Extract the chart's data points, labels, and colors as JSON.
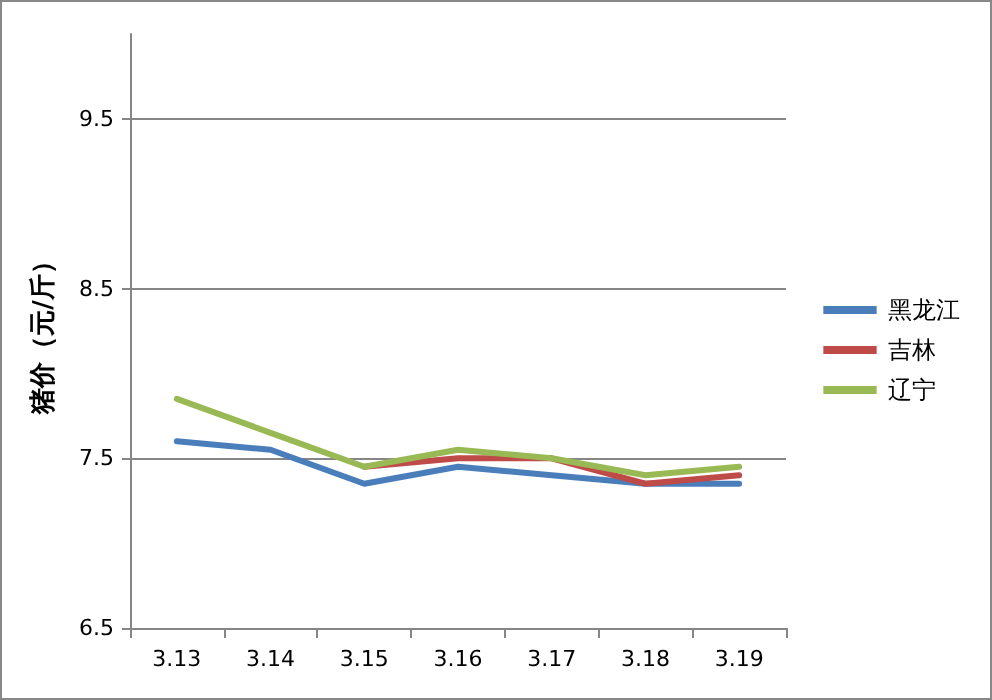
{
  "chart_data": {
    "type": "line",
    "ylabel": "猪价（元/斤）",
    "categories": [
      "3.13",
      "3.14",
      "3.15",
      "3.16",
      "3.17",
      "3.18",
      "3.19"
    ],
    "series": [
      {
        "name": "黑龙江",
        "color": "#4a7ebb",
        "values": [
          7.6,
          7.55,
          7.35,
          7.45,
          7.4,
          7.35,
          7.35
        ]
      },
      {
        "name": "吉林",
        "color": "#be4b48",
        "values": [
          null,
          null,
          7.45,
          7.5,
          7.5,
          7.35,
          7.4
        ]
      },
      {
        "name": "辽宁",
        "color": "#98b954",
        "values": [
          7.85,
          7.65,
          7.45,
          7.55,
          7.5,
          7.4,
          7.45
        ]
      }
    ],
    "ylim": [
      6.5,
      10
    ],
    "yticks": [
      6.5,
      7.5,
      8.5,
      9.5
    ],
    "grid": "y",
    "legend": "right",
    "marker": "none",
    "line_style": "solid"
  }
}
